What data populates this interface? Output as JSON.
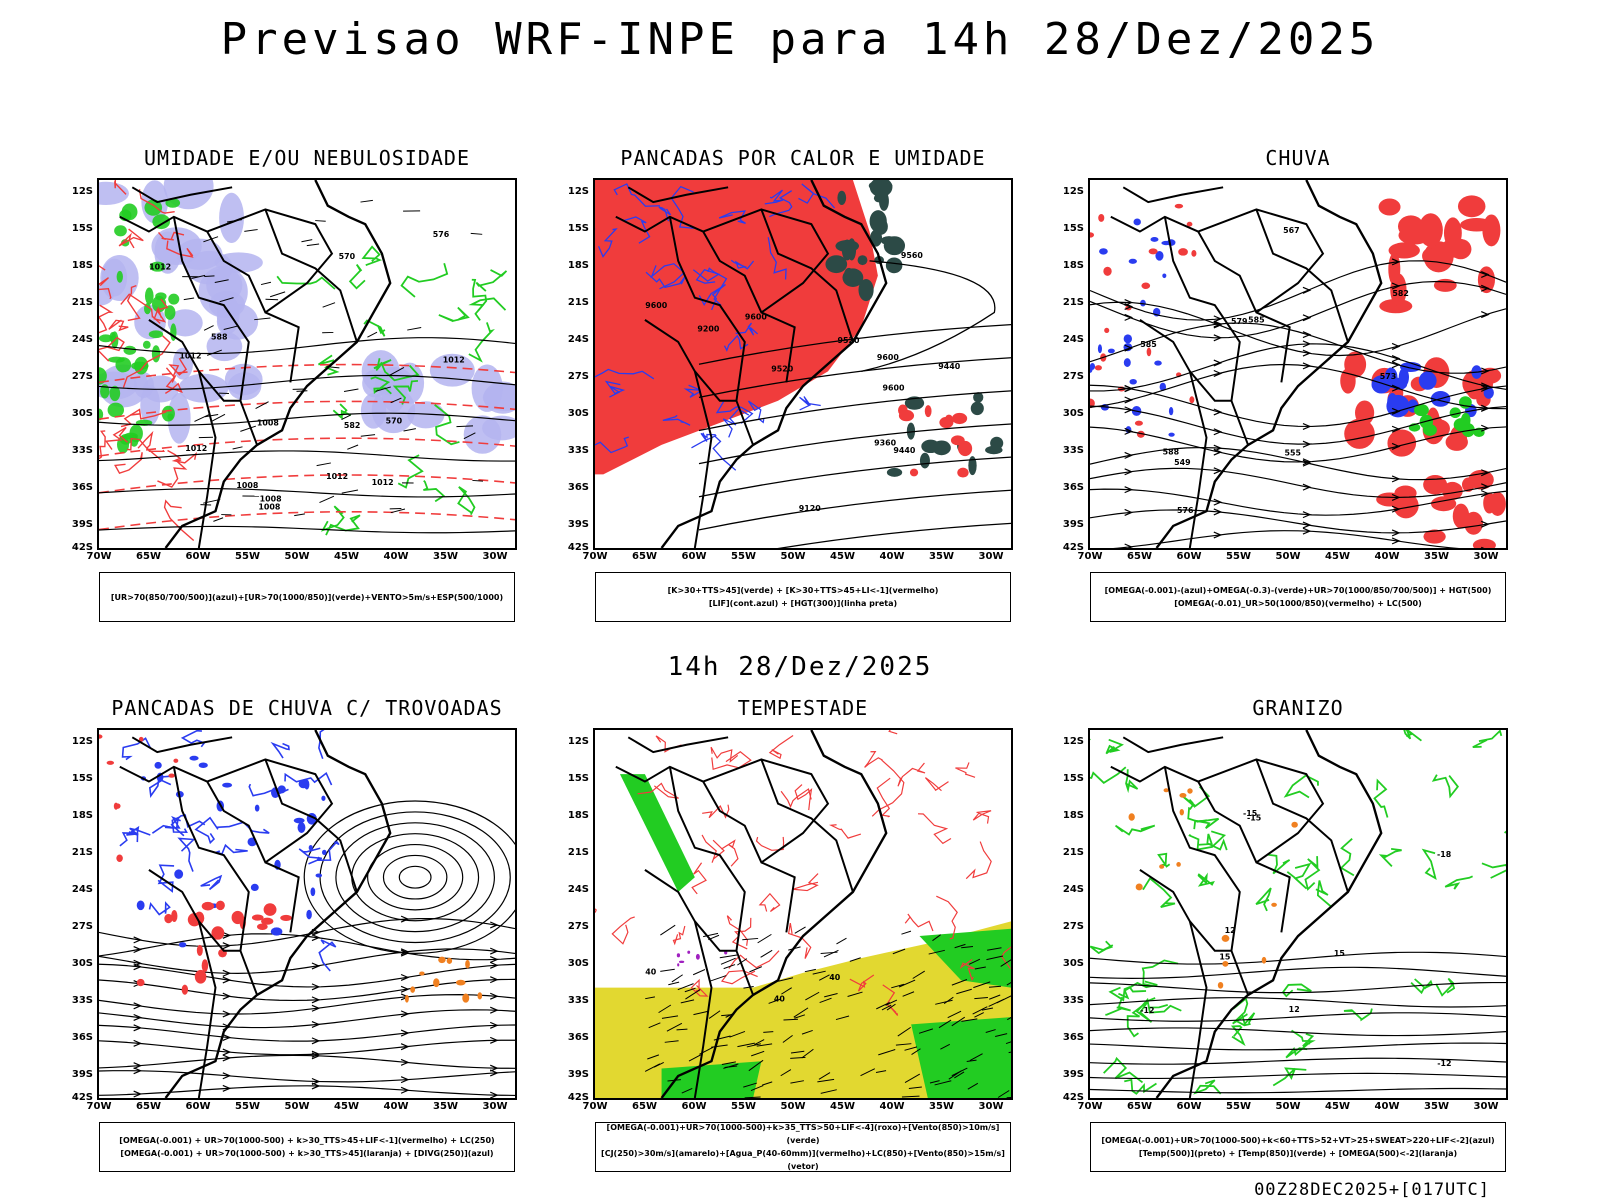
{
  "title": "Previsao WRF-INPE  para 14h 28/Dez/2025",
  "mid_time": "14h 28/Dez/2025",
  "footer": "00Z28DEC2025+[017UTC]",
  "lat_ticks": [
    "12S",
    "15S",
    "18S",
    "21S",
    "24S",
    "27S",
    "30S",
    "33S",
    "36S",
    "39S",
    "42S"
  ],
  "lon_ticks": [
    "70W",
    "65W",
    "60W",
    "55W",
    "50W",
    "45W",
    "40W",
    "35W",
    "30W"
  ],
  "panels": [
    {
      "title": "UMIDADE E/OU NEBULOSIDADE",
      "legend": [
        "[UR>70(850/700/500)](azul)+[UR>70(1000/850)](verde)+VENTO>5m/s+ESP(500/1000)"
      ],
      "contour_labels": [
        "1012",
        "1012",
        "1008",
        "1012",
        "1012",
        "1008",
        "1012",
        "1008",
        "1012",
        "1008",
        "570",
        "576",
        "582",
        "588",
        "570"
      ]
    },
    {
      "title": "PANCADAS POR CALOR E UMIDADE",
      "legend": [
        "[K>30+TTS>45](verde) + [K>30+TTS>45+LI<-1](vermelho)",
        "[LIF](cont.azul) + [HGT(300)](linha preta)"
      ],
      "contour_labels": [
        "9600",
        "9600",
        "9560",
        "9600",
        "9520",
        "9600",
        "9440",
        "9520",
        "9440",
        "9360",
        "9200",
        "9120"
      ]
    },
    {
      "title": "CHUVA",
      "legend": [
        "[OMEGA(-0.001)-(azul)+OMEGA(-0.3)-(verde)+UR>70(1000/850/700/500)] + HGT(500)",
        "[OMEGA(-0.01)_UR>50(1000/850)(vermelho) + LC(500)"
      ],
      "contour_labels": [
        "585",
        "588",
        "585",
        "582",
        "579",
        "576",
        "573",
        "567",
        "555",
        "549"
      ]
    },
    {
      "title": "PANCADAS DE CHUVA C/ TROVOADAS",
      "legend": [
        "[OMEGA(-0.001) + UR>70(1000-500) + k>30_TTS>45+LIF<-1](vermelho) + LC(250)",
        "[OMEGA(-0.001) + UR>70(1000-500) + k>30_TTS>45](laranja) + [DIVG(250)](azul)"
      ],
      "contour_labels": []
    },
    {
      "title": "TEMPESTADE",
      "legend": [
        "[OMEGA(-0.001)+UR>70(1000-500)+k>35_TTS>50+LIF<-4](roxo)+[Vento(850)>10m/s](verde)",
        "[CJ(250)>30m/s](amarelo)+[Agua_P(40-60mm)](vermelho)+LC(850)+[Vento(850)>15m/s](vetor)"
      ],
      "contour_labels": [
        "40",
        "40",
        "40"
      ]
    },
    {
      "title": "GRANIZO",
      "legend": [
        "[OMEGA(-0.001)+UR>70(1000-500)+k<60+TTS>52+VT>25+SWEAT>220+LIF<-2](azul)",
        "[Temp(500)](preto) + [Temp(850)](verde) + [OMEGA(500)<-2](laranja)"
      ],
      "contour_labels": [
        "-12",
        "-15",
        "-12",
        "-18",
        "-15",
        "12",
        "15",
        "15",
        "12"
      ]
    }
  ],
  "colors": {
    "red": "#f03c3c",
    "blue": "#2a3cf0",
    "green": "#22cc22",
    "lavender": "#b4b4f0",
    "dark_teal": "#2c4a46",
    "yellow": "#e2d830",
    "orange": "#f08020",
    "purple": "#a020c0"
  }
}
